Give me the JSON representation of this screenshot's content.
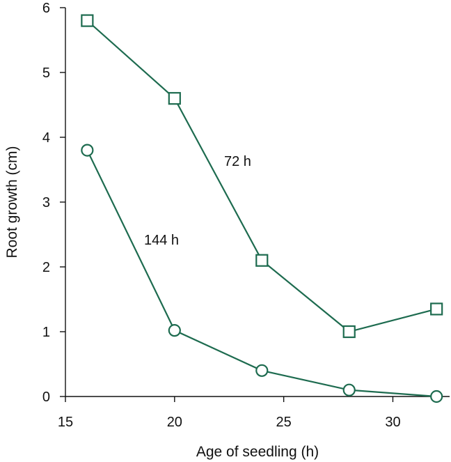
{
  "chart_data": {
    "type": "line",
    "title": "",
    "xlabel": "Age of seedling (h)",
    "ylabel": "Root growth (cm)",
    "xlim": [
      15,
      32.6
    ],
    "ylim": [
      0,
      6
    ],
    "xticks": [
      15,
      20,
      25,
      30
    ],
    "yticks": [
      0,
      1,
      2,
      3,
      4,
      5,
      6
    ],
    "grid": false,
    "color": "#1d6b4f",
    "series": [
      {
        "name": "72 h",
        "marker": "square",
        "x": [
          16,
          20,
          24,
          28,
          32
        ],
        "y": [
          5.8,
          4.6,
          2.1,
          1.0,
          1.35
        ]
      },
      {
        "name": "144 h",
        "marker": "circle",
        "x": [
          16,
          20,
          24,
          28,
          32
        ],
        "y": [
          3.8,
          1.02,
          0.4,
          0.1,
          0.0
        ]
      }
    ]
  }
}
